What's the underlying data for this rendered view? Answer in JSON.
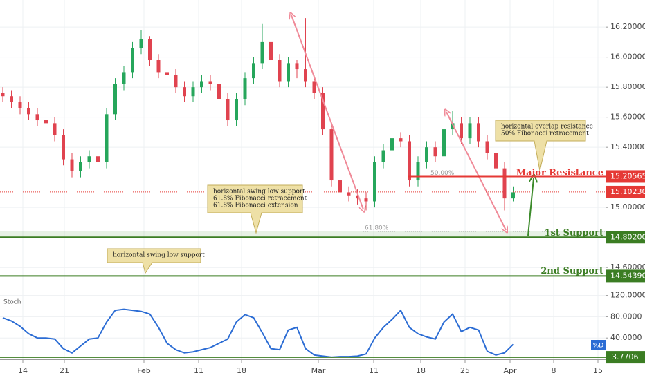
{
  "chart_data": [
    {
      "type": "candlestick",
      "x": [
        0,
        1,
        2,
        3,
        4,
        5,
        6,
        7,
        8,
        9,
        10,
        11,
        12,
        13,
        14,
        15,
        16,
        17,
        18,
        19,
        20,
        21,
        22,
        23,
        24,
        25,
        26,
        27,
        28,
        29,
        30,
        31,
        32,
        33,
        34,
        35,
        36,
        37,
        38,
        39,
        40,
        41,
        42,
        43,
        44,
        45,
        46,
        47,
        48,
        49,
        50,
        51,
        52,
        53,
        54,
        55,
        56,
        57,
        58,
        59
      ],
      "open": [
        15.76,
        15.74,
        15.7,
        15.66,
        15.62,
        15.58,
        15.56,
        15.48,
        15.32,
        15.24,
        15.3,
        15.34,
        15.3,
        15.62,
        15.82,
        15.9,
        16.06,
        16.12,
        15.98,
        15.9,
        15.88,
        15.8,
        15.74,
        15.8,
        15.84,
        15.82,
        15.72,
        15.58,
        15.72,
        15.86,
        15.96,
        16.1,
        15.98,
        15.84,
        15.96,
        15.92,
        15.84,
        15.76,
        15.52,
        15.18,
        15.1,
        15.08,
        15.06,
        15.04,
        15.3,
        15.38,
        15.46,
        15.44,
        15.18,
        15.3,
        15.4,
        15.34,
        15.52,
        15.56,
        15.46,
        15.56,
        15.44,
        15.36,
        15.26,
        15.06
      ],
      "high": [
        15.8,
        15.78,
        15.74,
        15.7,
        15.66,
        15.62,
        15.6,
        15.52,
        15.36,
        15.34,
        15.38,
        15.38,
        15.66,
        15.86,
        15.94,
        16.1,
        16.18,
        16.14,
        16.02,
        15.94,
        15.92,
        15.84,
        15.84,
        15.88,
        15.88,
        15.86,
        15.76,
        15.76,
        15.9,
        16.0,
        16.22,
        16.12,
        16.02,
        16.0,
        15.98,
        16.26,
        15.88,
        15.8,
        15.56,
        15.22,
        15.14,
        15.12,
        15.1,
        15.34,
        15.42,
        15.52,
        15.5,
        15.48,
        15.34,
        15.44,
        15.44,
        15.56,
        15.64,
        15.6,
        15.6,
        15.6,
        15.48,
        15.4,
        15.3,
        15.14
      ],
      "low": [
        15.7,
        15.66,
        15.62,
        15.58,
        15.54,
        15.52,
        15.44,
        15.28,
        15.2,
        15.2,
        15.26,
        15.26,
        15.26,
        15.58,
        15.78,
        15.86,
        16.02,
        15.94,
        15.86,
        15.84,
        15.76,
        15.7,
        15.7,
        15.76,
        15.78,
        15.68,
        15.54,
        15.54,
        15.68,
        15.82,
        15.92,
        15.94,
        15.8,
        15.8,
        15.86,
        15.8,
        15.72,
        15.48,
        15.14,
        15.06,
        15.04,
        15.02,
        14.98,
        15.0,
        15.26,
        15.34,
        15.4,
        15.14,
        15.14,
        15.26,
        15.3,
        15.3,
        15.48,
        15.42,
        15.42,
        15.4,
        15.32,
        15.22,
        14.98,
        15.04
      ],
      "close": [
        15.74,
        15.7,
        15.66,
        15.62,
        15.58,
        15.56,
        15.48,
        15.32,
        15.24,
        15.3,
        15.34,
        15.3,
        15.62,
        15.82,
        15.9,
        16.06,
        16.12,
        15.98,
        15.9,
        15.88,
        15.8,
        15.74,
        15.8,
        15.84,
        15.82,
        15.72,
        15.58,
        15.72,
        15.86,
        15.96,
        16.1,
        15.98,
        15.84,
        15.96,
        15.92,
        15.84,
        15.76,
        15.52,
        15.18,
        15.1,
        15.08,
        15.06,
        15.04,
        15.3,
        15.38,
        15.46,
        15.44,
        15.18,
        15.3,
        15.4,
        15.34,
        15.52,
        15.56,
        15.46,
        15.56,
        15.44,
        15.36,
        15.26,
        15.06,
        15.1
      ],
      "up_color": "#26a65b",
      "down_color": "#e0434f",
      "ylim": [
        14.44,
        16.38
      ],
      "yticks": [
        {
          "value": 16.2,
          "label": "16.20000"
        },
        {
          "value": 16.0,
          "label": "16.00000"
        },
        {
          "value": 15.8,
          "label": "15.80000"
        },
        {
          "value": 15.6,
          "label": "15.60000"
        },
        {
          "value": 15.4,
          "label": "15.40000"
        },
        {
          "value": 15.0,
          "label": "15.00000"
        },
        {
          "value": 14.6,
          "label": "14.60000"
        }
      ],
      "levels": [
        {
          "name": "Major Resistance",
          "value": 15.20565,
          "label": "15.20565",
          "color": "#e53935"
        },
        {
          "name": "1st Support",
          "value": 14.802,
          "label": "14.80200",
          "color": "#3b7d23"
        },
        {
          "name": "2nd Support",
          "value": 14.5439,
          "label": "14.54390",
          "color": "#3b7d23"
        }
      ],
      "last_price": {
        "value": 15.1023,
        "label": "15.10230",
        "color": "#e53935"
      },
      "fib_levels": [
        {
          "value": 15.206,
          "label": "50.00%"
        },
        {
          "value": 14.84,
          "label": "61.80%"
        }
      ],
      "annotations": [
        {
          "lines": [
            "horizontal swing low support",
            "61.8% Fibonacci retracement",
            "61.8% Fibonacci extension"
          ]
        },
        {
          "lines": [
            "horizontal swing low support"
          ]
        },
        {
          "lines": [
            "horizontal overlap resistance",
            "50% Fibonacci retracement"
          ]
        }
      ],
      "grid": true
    },
    {
      "type": "line",
      "title": "Stoch",
      "x": [
        0,
        1,
        2,
        3,
        4,
        5,
        6,
        7,
        8,
        9,
        10,
        11,
        12,
        13,
        14,
        15,
        16,
        17,
        18,
        19,
        20,
        21,
        22,
        23,
        24,
        25,
        26,
        27,
        28,
        29,
        30,
        31,
        32,
        33,
        34,
        35,
        36,
        37,
        38,
        39,
        40,
        41,
        42,
        43,
        44,
        45,
        46,
        47,
        48,
        49,
        50,
        51,
        52,
        53,
        54,
        55,
        56,
        57,
        58,
        59
      ],
      "series": [
        {
          "name": "%D",
          "color": "#2b6cd4",
          "values": [
            78,
            72,
            62,
            48,
            40,
            40,
            38,
            20,
            12,
            25,
            38,
            40,
            70,
            92,
            94,
            92,
            90,
            85,
            60,
            30,
            18,
            12,
            14,
            18,
            22,
            30,
            38,
            70,
            84,
            78,
            50,
            20,
            18,
            55,
            60,
            20,
            8,
            6,
            4,
            5,
            5,
            6,
            10,
            40,
            60,
            75,
            92,
            60,
            48,
            42,
            38,
            70,
            85,
            52,
            60,
            55,
            15,
            8,
            12,
            28
          ]
        }
      ],
      "level": {
        "value": 3.7706,
        "label": "3.7706",
        "color": "#3b7d23"
      },
      "ylim": [
        0,
        126
      ],
      "yticks": [
        {
          "value": 120,
          "label": "120.0000"
        },
        {
          "value": 80,
          "label": "80.0000"
        },
        {
          "value": 40,
          "label": "40.0000"
        }
      ],
      "xlim": [
        -0.32,
        69.68
      ],
      "xticks": [
        {
          "value": 2.32,
          "label": "14"
        },
        {
          "value": 7.12,
          "label": "21"
        },
        {
          "value": 16.32,
          "label": "Feb"
        },
        {
          "value": 22.64,
          "label": "11"
        },
        {
          "value": 27.6,
          "label": "18"
        },
        {
          "value": 36.48,
          "label": "Mar"
        },
        {
          "value": 42.88,
          "label": "11"
        },
        {
          "value": 48.32,
          "label": "18"
        },
        {
          "value": 53.44,
          "label": "25"
        },
        {
          "value": 58.64,
          "label": "Apr"
        },
        {
          "value": 63.68,
          "label": "8"
        },
        {
          "value": 68.8,
          "label": "15"
        }
      ],
      "grid": true
    }
  ]
}
